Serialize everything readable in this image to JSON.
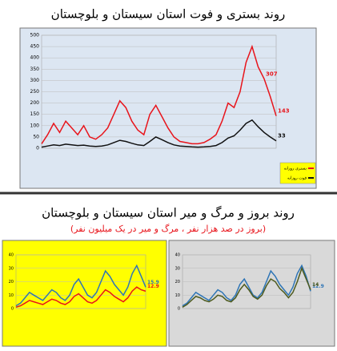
{
  "chart_data": [
    {
      "type": "line",
      "title": "روند بستری و فوت استان سیستان و بلوچستان",
      "background": "#dce6f2",
      "ylim": [
        0,
        500
      ],
      "yticks": [
        0,
        50,
        100,
        150,
        200,
        250,
        300,
        350,
        400,
        450,
        500
      ],
      "grid": true,
      "legend": "bottom-right",
      "series": [
        {
          "name": "بستری روزانه",
          "color": "#e8141b",
          "labels_at": [
            37,
            39
          ],
          "values": [
            20,
            60,
            110,
            70,
            120,
            90,
            60,
            100,
            50,
            40,
            60,
            90,
            150,
            210,
            180,
            120,
            80,
            60,
            150,
            190,
            140,
            90,
            50,
            30,
            25,
            20,
            20,
            25,
            40,
            60,
            120,
            200,
            180,
            250,
            380,
            450,
            360,
            307,
            230,
            143
          ]
        },
        {
          "name": "فوت روزانه",
          "color": "#111111",
          "labels_at": [
            39
          ],
          "values": [
            5,
            10,
            15,
            12,
            18,
            15,
            12,
            14,
            10,
            8,
            10,
            15,
            25,
            35,
            30,
            22,
            15,
            12,
            30,
            50,
            38,
            25,
            15,
            10,
            8,
            6,
            5,
            6,
            8,
            12,
            25,
            45,
            55,
            80,
            110,
            125,
            95,
            70,
            50,
            33
          ]
        }
      ]
    },
    {
      "type": "line",
      "background": "#ffff00",
      "ylim": [
        0,
        40
      ],
      "yticks": [
        0,
        10,
        20,
        30,
        40
      ],
      "grid": true,
      "series": [
        {
          "color": "#2e75b6",
          "labels_at": [
            29
          ],
          "values": [
            2,
            4,
            8,
            12,
            10,
            8,
            6,
            10,
            14,
            12,
            8,
            6,
            10,
            18,
            22,
            16,
            10,
            8,
            12,
            20,
            28,
            24,
            18,
            14,
            10,
            16,
            26,
            32,
            24,
            15.9
          ]
        },
        {
          "color": "#e8141b",
          "labels_at": [
            29
          ],
          "values": [
            1,
            2,
            4,
            6,
            5,
            4,
            3,
            5,
            7,
            6,
            4,
            3,
            5,
            9,
            11,
            8,
            5,
            4,
            6,
            10,
            14,
            12,
            9,
            7,
            5,
            8,
            13,
            16,
            14,
            12.9
          ]
        }
      ]
    },
    {
      "type": "line",
      "background": "#d9d9d9",
      "ylim": [
        0,
        40
      ],
      "yticks": [
        0,
        10,
        20,
        30,
        40
      ],
      "grid": true,
      "series": [
        {
          "color": "#2e75b6",
          "labels_at": [
            29
          ],
          "values": [
            2,
            4,
            8,
            12,
            10,
            8,
            6,
            10,
            14,
            12,
            8,
            6,
            10,
            18,
            22,
            16,
            10,
            8,
            12,
            20,
            28,
            24,
            18,
            14,
            10,
            16,
            26,
            32,
            24,
            12.9
          ]
        },
        {
          "color": "#4d5a1e",
          "labels_at": [
            29
          ],
          "values": [
            1,
            3,
            6,
            9,
            8,
            6,
            5,
            7,
            10,
            9,
            6,
            5,
            8,
            14,
            18,
            14,
            9,
            7,
            10,
            17,
            22,
            20,
            15,
            12,
            8,
            12,
            20,
            30,
            22,
            14
          ]
        }
      ]
    }
  ],
  "section_title": "روند بروز و مرگ و میر استان سیستان و بلوچستان",
  "section_subtitle": "(بروز در صد هزار نفر ، مرگ و میر در یک میلیون نفر)"
}
